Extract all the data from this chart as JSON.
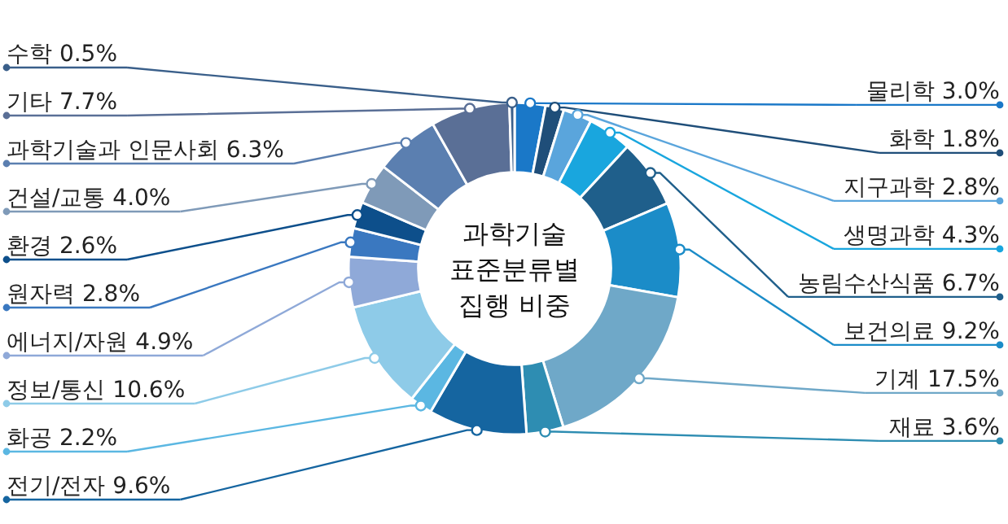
{
  "chart_data": {
    "type": "donut",
    "title": "과학기술\n표준분류별\n집행 비중",
    "categories": [
      "물리학",
      "화학",
      "지구과학",
      "생명과학",
      "농림수산식품",
      "보건의료",
      "기계",
      "재료",
      "전기/전자",
      "화공",
      "정보/통신",
      "에너지/자원",
      "원자력",
      "환경",
      "건설/교통",
      "과학기술과 인문사회",
      "기타",
      "수학"
    ],
    "values": [
      3.0,
      1.8,
      2.8,
      4.3,
      6.7,
      9.2,
      17.5,
      3.6,
      9.6,
      2.2,
      10.6,
      4.9,
      2.8,
      2.6,
      4.0,
      6.3,
      7.7,
      0.5
    ],
    "value_labels": [
      "3.0%",
      "1.8%",
      "2.8%",
      "4.3%",
      "6.7%",
      "9.2%",
      "17.5%",
      "3.6%",
      "9.6%",
      "2.2%",
      "10.6%",
      "4.9%",
      "2.8%",
      "2.6%",
      "4.0%",
      "6.3%",
      "7.7%",
      "0.5%"
    ],
    "colors": [
      "#1a78c8",
      "#1f4e79",
      "#5aa5dc",
      "#19a6de",
      "#1f5f8b",
      "#1b8cc8",
      "#6fa8c8",
      "#2e8db2",
      "#1565a0",
      "#5bb7e2",
      "#8ecbe8",
      "#8fa9d8",
      "#3a78c0",
      "#0d4f8b",
      "#7f9ab8",
      "#5b7fb0",
      "#5a6f96",
      "#3a5f8a"
    ]
  }
}
